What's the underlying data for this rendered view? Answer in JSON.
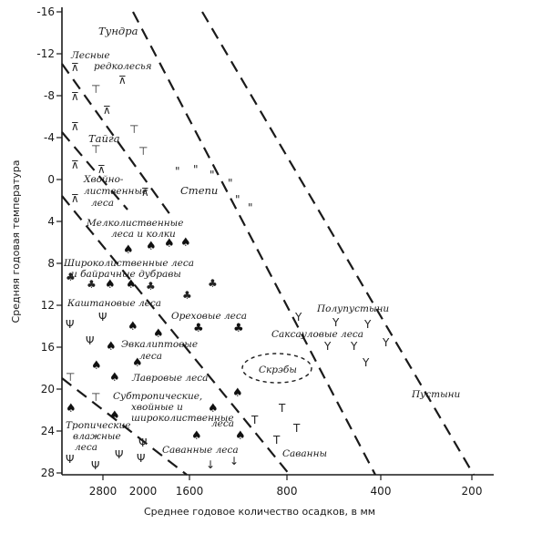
{
  "axes": {
    "x_label": "Среднее годовое количество осадков, в мм",
    "y_label": "Средняя годовая температура",
    "x_ticks": [
      "2800",
      "2000",
      "1600",
      "800",
      "400",
      "200"
    ],
    "y_ticks": [
      "-16",
      "-12",
      "-8",
      "-4",
      "0",
      "4",
      "8",
      "12",
      "16",
      "20",
      "24",
      "28"
    ]
  },
  "zones": {
    "tundra": "Тундра",
    "forest_tundra_1": "Лесные",
    "forest_tundra_2": "редколесья",
    "taiga": "Тайга",
    "mixed_1": "Хвойно-",
    "mixed_2": "лиственные",
    "mixed_3": "леса",
    "steppe": "Степи",
    "smallleaf_1": "Мелколиственные",
    "smallleaf_2": "леса и колки",
    "broadleaf_1": "Широколиственные леса",
    "broadleaf_2": "и байрачные дубравы",
    "chestnut": "Каштановые леса",
    "walnut": "Ореховые леса",
    "semidesert": "Полупустыни",
    "saxaul": "Саксауловые леса",
    "eucalypt_1": "Эвкалиптовые",
    "eucalypt_2": "леса",
    "shrub": "Скрэбы",
    "laurel": "Лавровые леса",
    "desert": "Пустыни",
    "subtrop_1": "Субтропические,",
    "subtrop_2": "хвойные и",
    "subtrop_3": "широколиственные",
    "subtrop_4": "леса",
    "tropical_1": "Тропические",
    "tropical_2": "влажные",
    "tropical_3": "леса",
    "savanna_forest": "Саванные леса",
    "savanna": "Саванны"
  },
  "icons": {
    "conifer": "⊼",
    "pine": "⊤",
    "grass": "\"",
    "leaf": "♠",
    "deciduous": "♣",
    "palm": "Ψ",
    "desert_shrub": "Y",
    "savanna_tree": "T",
    "arrow": "↓",
    "shrub_ring": "o"
  }
}
